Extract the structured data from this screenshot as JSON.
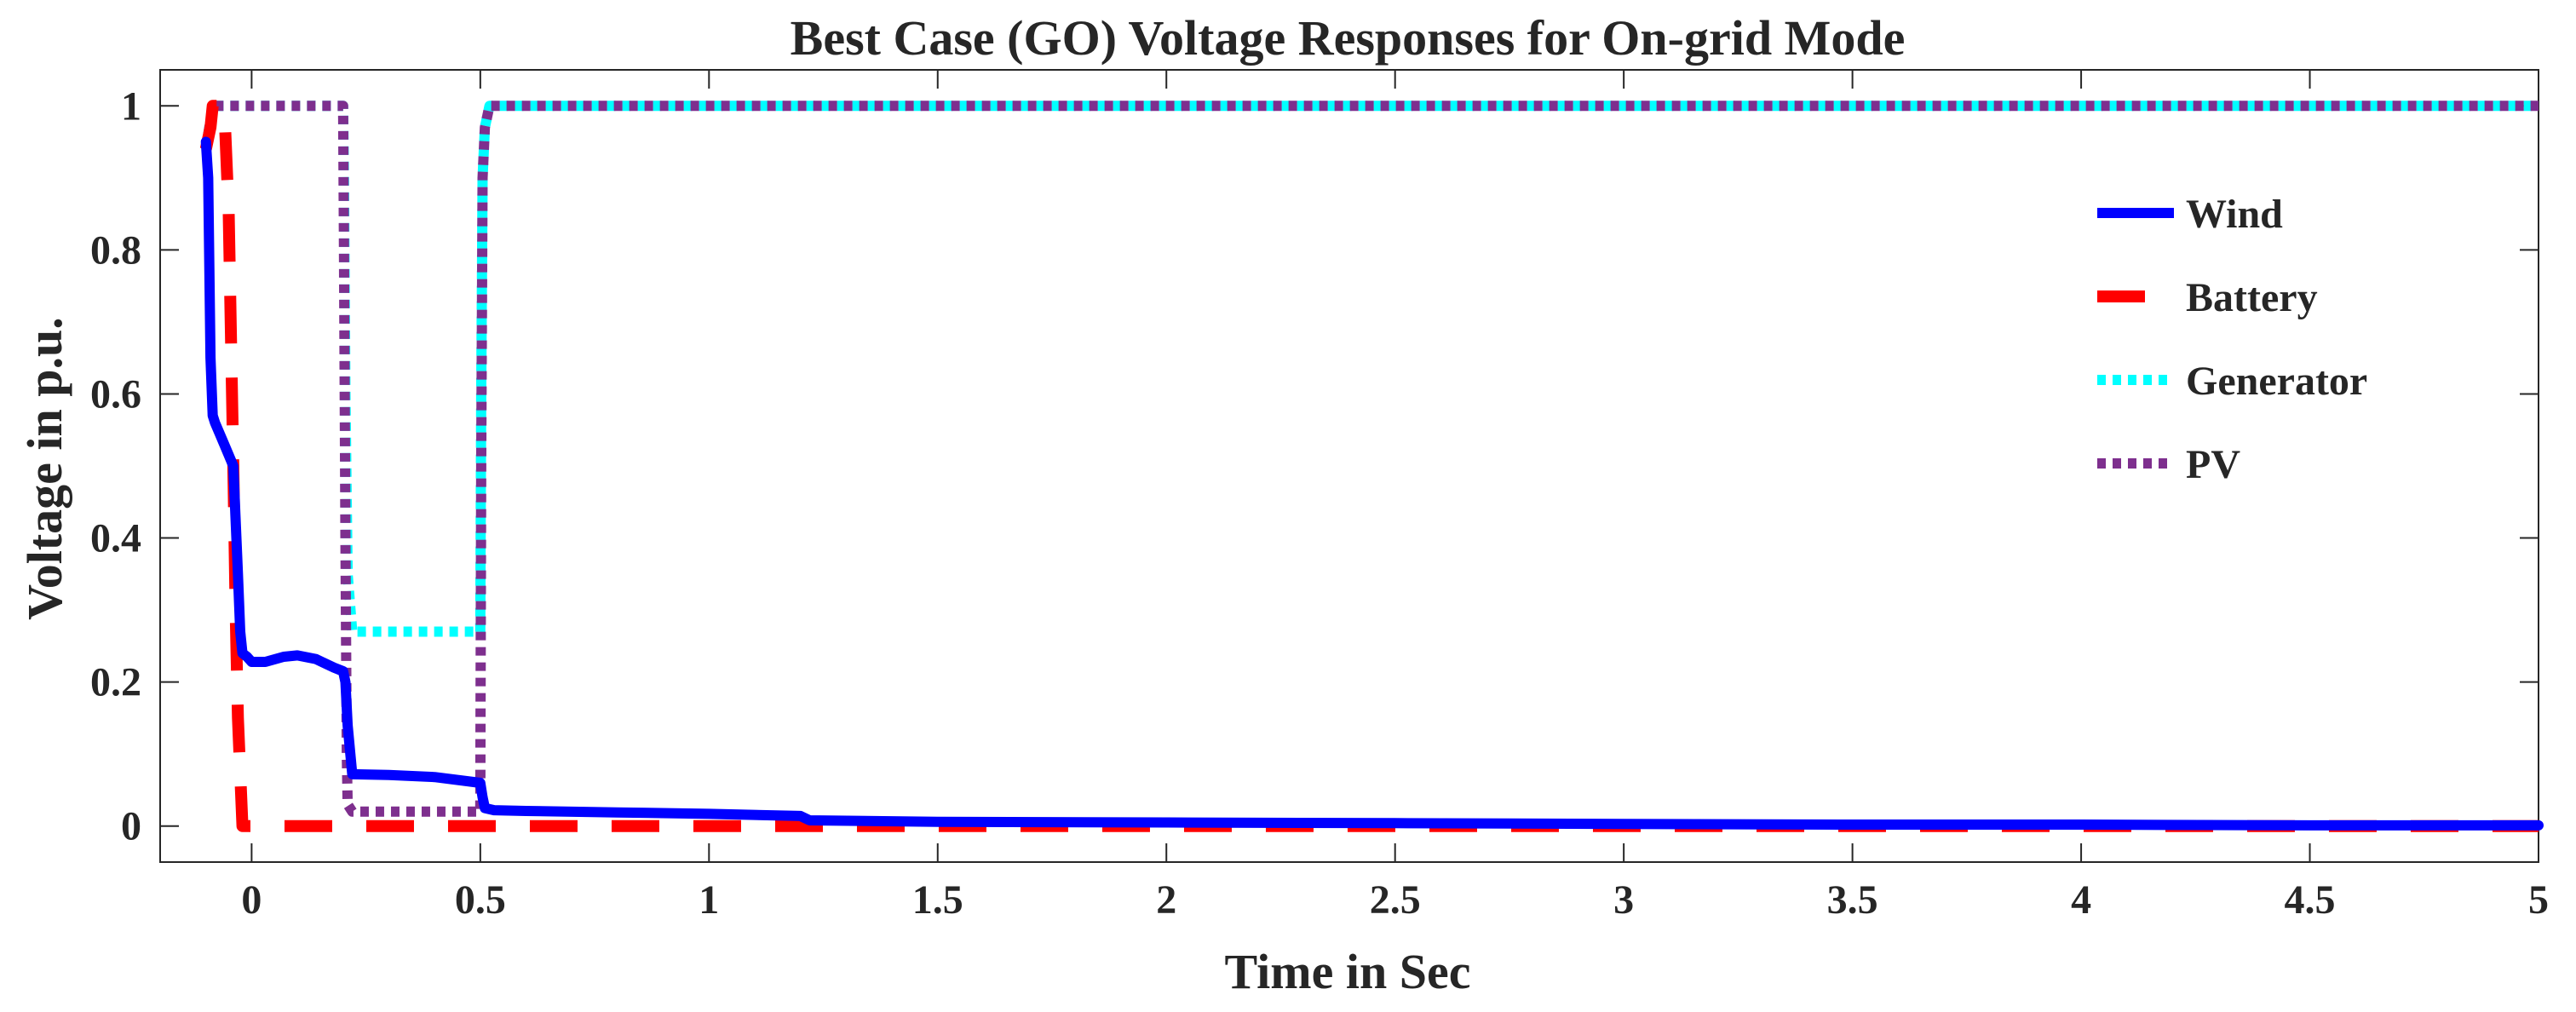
{
  "chart_data": {
    "type": "line",
    "title": "Best Case (GO) Voltage Responses for On-grid Mode",
    "xlabel": "Time in Sec",
    "ylabel": "Voltage in p.u.",
    "xlim": [
      -0.2,
      5
    ],
    "ylim": [
      -0.05,
      1.05
    ],
    "xticks": [
      0,
      0.5,
      1,
      1.5,
      2,
      2.5,
      3,
      3.5,
      4,
      4.5,
      5
    ],
    "xtick_labels": [
      "0",
      "0.5",
      "1",
      "1.5",
      "2",
      "2.5",
      "3",
      "3.5",
      "4",
      "4.5",
      "5"
    ],
    "yticks": [
      0,
      0.2,
      0.4,
      0.6,
      0.8,
      1
    ],
    "ytick_labels": [
      "0",
      "0.2",
      "0.4",
      "0.6",
      "0.8",
      "1"
    ],
    "grid": false,
    "legend_position": "top-right",
    "series": [
      {
        "name": "Wind",
        "color": "#0000ff",
        "style": "solid",
        "x": [
          -0.1,
          -0.095,
          -0.09,
          -0.085,
          -0.08,
          -0.06,
          -0.04,
          -0.03,
          -0.025,
          -0.02,
          -0.01,
          0.0,
          0.03,
          0.07,
          0.1,
          0.14,
          0.18,
          0.2,
          0.205,
          0.21,
          0.22,
          0.3,
          0.4,
          0.5,
          0.505,
          0.51,
          0.53,
          0.6,
          0.8,
          1.0,
          1.2,
          1.22,
          1.5,
          2,
          2.5,
          3,
          3.5,
          4,
          4.5,
          5
        ],
        "y": [
          0.95,
          0.9,
          0.65,
          0.57,
          0.56,
          0.53,
          0.5,
          0.35,
          0.27,
          0.24,
          0.235,
          0.228,
          0.228,
          0.235,
          0.237,
          0.232,
          0.22,
          0.215,
          0.2,
          0.14,
          0.072,
          0.071,
          0.068,
          0.06,
          0.04,
          0.025,
          0.022,
          0.021,
          0.019,
          0.017,
          0.014,
          0.008,
          0.006,
          0.005,
          0.004,
          0.003,
          0.002,
          0.002,
          0.001,
          0.001
        ]
      },
      {
        "name": "Battery",
        "color": "#ff0000",
        "style": "dashed",
        "x": [
          -0.1,
          -0.09,
          -0.085,
          -0.06,
          -0.05,
          -0.04,
          -0.035,
          -0.03,
          -0.02,
          0.0,
          5
        ],
        "y": [
          0.94,
          0.97,
          1.0,
          1.0,
          0.85,
          0.5,
          0.3,
          0.15,
          0.0,
          0.0,
          0.0
        ]
      },
      {
        "name": "Generator",
        "color": "#00ffff",
        "style": "dotted",
        "x": [
          -0.1,
          -0.09,
          -0.085,
          0.2,
          0.202,
          0.205,
          0.21,
          0.22,
          0.5,
          0.502,
          0.505,
          0.51,
          0.52,
          5
        ],
        "y": [
          0.94,
          0.98,
          1.0,
          1.0,
          0.9,
          0.6,
          0.35,
          0.27,
          0.27,
          0.6,
          0.9,
          0.97,
          1.0,
          1.0
        ]
      },
      {
        "name": "PV",
        "color": "#7e2f8e",
        "style": "dotted",
        "x": [
          -0.1,
          -0.09,
          -0.085,
          0.2,
          0.202,
          0.205,
          0.208,
          0.21,
          0.22,
          0.5,
          0.502,
          0.505,
          0.51,
          0.52,
          5
        ],
        "y": [
          0.94,
          0.98,
          1.0,
          1.0,
          0.8,
          0.4,
          0.1,
          0.03,
          0.02,
          0.02,
          0.5,
          0.9,
          0.97,
          1.0,
          1.0
        ]
      }
    ]
  }
}
